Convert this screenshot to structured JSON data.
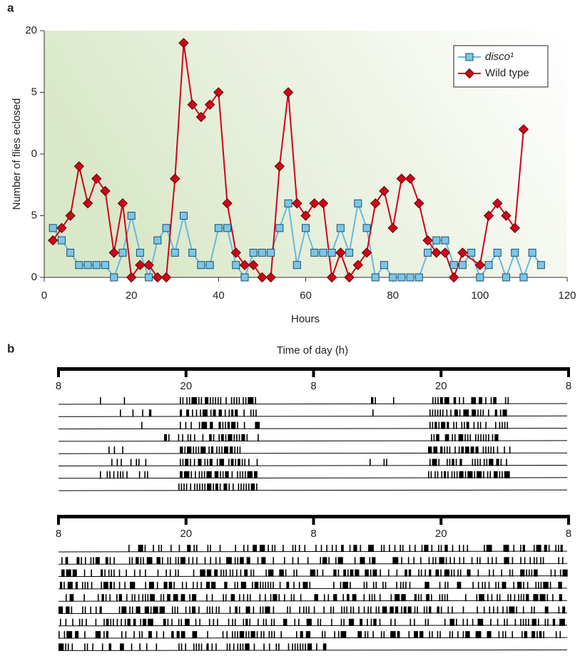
{
  "panel_a_label": "a",
  "chart_data": {
    "type": "line",
    "x_label": "Hours",
    "y_label": "Number of flies eclosed",
    "xlim": [
      0,
      120
    ],
    "xticks": [
      0,
      20,
      40,
      60,
      80,
      100,
      120
    ],
    "ylim": [
      0,
      20
    ],
    "yticks": [
      0,
      5,
      {
        "value": 10,
        "label": "0"
      },
      {
        "value": 15,
        "label": "5"
      },
      20
    ],
    "legend": "upper right",
    "series": [
      {
        "name": "disco¹",
        "color": "#6ab8dc",
        "marker": "square",
        "x": [
          2,
          4,
          6,
          8,
          10,
          12,
          14,
          16,
          18,
          20,
          22,
          24,
          26,
          28,
          30,
          32,
          34,
          36,
          38,
          40,
          42,
          44,
          46,
          48,
          50,
          52,
          54,
          56,
          58,
          60,
          62,
          64,
          66,
          68,
          70,
          72,
          74,
          76,
          78,
          80,
          82,
          84,
          86,
          88,
          90,
          92,
          94,
          96,
          98,
          100,
          102,
          104,
          106,
          108,
          110,
          112,
          114
        ],
        "values": [
          4,
          3,
          2,
          1,
          1,
          1,
          1,
          0,
          2,
          5,
          2,
          0,
          3,
          4,
          2,
          5,
          2,
          1,
          1,
          4,
          4,
          1,
          0,
          2,
          2,
          2,
          4,
          6,
          1,
          4,
          2,
          2,
          2,
          4,
          2,
          6,
          4,
          0,
          1,
          0,
          0,
          0,
          0,
          2,
          3,
          3,
          1,
          1,
          2,
          0,
          1,
          2,
          0,
          2,
          0,
          2,
          1
        ]
      },
      {
        "name": "Wild type",
        "color": "#d0021b",
        "marker": "diamond",
        "x": [
          2,
          4,
          6,
          8,
          10,
          12,
          14,
          16,
          18,
          20,
          22,
          24,
          26,
          28,
          30,
          32,
          34,
          36,
          38,
          40,
          42,
          44,
          46,
          48,
          50,
          52,
          54,
          56,
          58,
          60,
          62,
          64,
          66,
          68,
          70,
          72,
          74,
          76,
          78,
          80,
          82,
          84,
          86,
          88,
          90,
          92,
          94,
          96,
          100,
          102,
          104,
          106,
          108,
          110
        ],
        "values": [
          3,
          4,
          5,
          9,
          6,
          8,
          7,
          2,
          6,
          0,
          1,
          1,
          0,
          0,
          8,
          19,
          14,
          13,
          14,
          15,
          6,
          2,
          1,
          1,
          0,
          0,
          9,
          15,
          6,
          5,
          6,
          6,
          0,
          2,
          0,
          1,
          2,
          6,
          7,
          4,
          8,
          8,
          6,
          3,
          2,
          2,
          0,
          2,
          1,
          5,
          6,
          5,
          4,
          12
        ]
      }
    ]
  },
  "panel_b": {
    "label": "b",
    "title": "Time of day (h)",
    "actograms": [
      {
        "ticks": [
          "8",
          "20",
          "8",
          "20",
          "8"
        ]
      },
      {
        "ticks": [
          "8",
          "20",
          "8",
          "20",
          "8"
        ]
      }
    ]
  }
}
